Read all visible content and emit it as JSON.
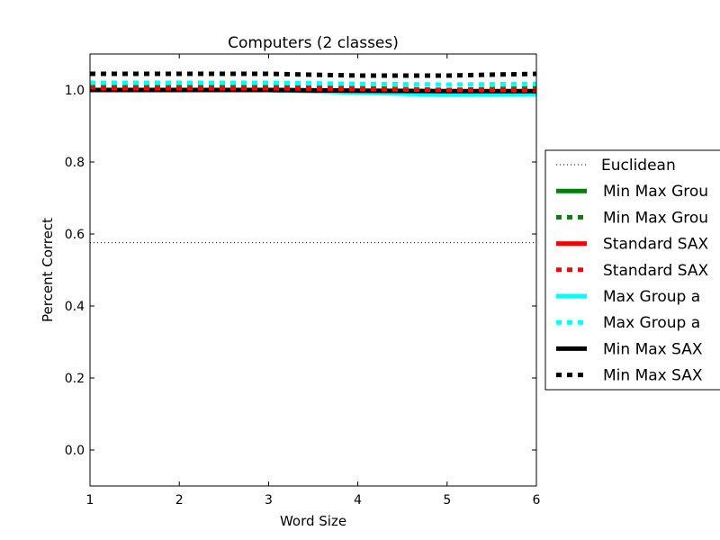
{
  "chart_data": {
    "type": "line",
    "title": "Computers (2 classes)",
    "xlabel": "Word Size",
    "ylabel": "Percent Correct",
    "xlim": [
      1,
      6
    ],
    "ylim": [
      -0.1,
      1.1
    ],
    "xticks": [
      1,
      2,
      3,
      4,
      5,
      6
    ],
    "yticks": [
      0.0,
      0.2,
      0.4,
      0.6,
      0.8,
      1.0
    ],
    "xtick_labels": [
      "1",
      "2",
      "3",
      "4",
      "5",
      "6"
    ],
    "ytick_labels": [
      "0.0",
      "0.2",
      "0.4",
      "0.6",
      "0.8",
      "1.0"
    ],
    "grid": false,
    "legend_position": "outside-right",
    "x": [
      1,
      2,
      3,
      4,
      5,
      6
    ],
    "series": [
      {
        "name": "Euclidean",
        "legend_label": "Euclidean",
        "color": "#000000",
        "style": "dotted",
        "values": [
          0.576,
          0.576,
          0.576,
          0.576,
          0.576,
          0.576
        ]
      },
      {
        "name": "Min Max Group solid",
        "legend_label": "Min Max Grou",
        "color": "#008000",
        "style": "solid",
        "values": [
          1.0,
          1.0,
          1.0,
          0.995,
          0.99,
          0.99
        ]
      },
      {
        "name": "Min Max Group dashed",
        "legend_label": "Min Max Grou",
        "color": "#008000",
        "style": "dashed",
        "values": [
          1.01,
          1.01,
          1.01,
          1.005,
          1.0,
          1.005
        ]
      },
      {
        "name": "Standard SAX solid",
        "legend_label": "Standard SAX",
        "color": "#ff0000",
        "style": "solid",
        "values": [
          1.0,
          1.0,
          1.0,
          0.997,
          0.995,
          0.995
        ]
      },
      {
        "name": "Standard SAX dashed",
        "legend_label": "Standard SAX",
        "color": "#ff0000",
        "style": "dashed",
        "values": [
          1.005,
          1.005,
          1.005,
          1.003,
          1.0,
          1.0
        ]
      },
      {
        "name": "Max Group solid",
        "legend_label": "Max Group a",
        "color": "#00ffff",
        "style": "solid",
        "values": [
          1.0,
          1.0,
          1.0,
          0.993,
          0.987,
          0.989
        ]
      },
      {
        "name": "Max Group dashed",
        "legend_label": "Max Group a",
        "color": "#00ffff",
        "style": "dashed",
        "values": [
          1.02,
          1.02,
          1.02,
          1.017,
          1.015,
          1.017
        ]
      },
      {
        "name": "Min Max SAX solid",
        "legend_label": "Min Max SAX",
        "color": "#000000",
        "style": "solid",
        "values": [
          1.0,
          1.0,
          1.0,
          0.998,
          0.997,
          0.997
        ]
      },
      {
        "name": "Min Max SAX dashed",
        "legend_label": "Min Max SAX",
        "color": "#000000",
        "style": "dashed",
        "values": [
          1.045,
          1.045,
          1.045,
          1.04,
          1.04,
          1.045
        ]
      }
    ]
  }
}
